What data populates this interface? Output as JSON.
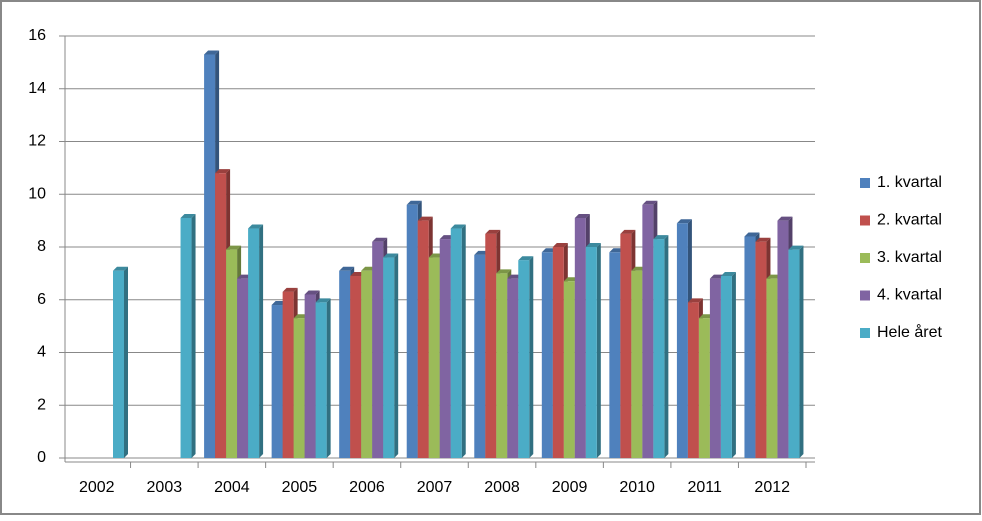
{
  "chart_data": {
    "type": "bar",
    "categories": [
      "2002",
      "2003",
      "2004",
      "2005",
      "2006",
      "2007",
      "2008",
      "2009",
      "2010",
      "2011",
      "2012"
    ],
    "series": [
      {
        "name": "1. kvartal",
        "color": "#4f81bd",
        "values": [
          null,
          null,
          15.3,
          5.8,
          7.1,
          9.6,
          7.7,
          7.8,
          7.8,
          8.9,
          8.4
        ]
      },
      {
        "name": "2. kvartal",
        "color": "#c0504d",
        "values": [
          null,
          null,
          10.8,
          6.3,
          6.9,
          9.0,
          8.5,
          8.0,
          8.5,
          5.9,
          8.2
        ]
      },
      {
        "name": "3. kvartal",
        "color": "#9bbb59",
        "values": [
          null,
          null,
          7.9,
          5.3,
          7.1,
          7.6,
          7.0,
          6.7,
          7.1,
          5.3,
          6.8
        ]
      },
      {
        "name": "4. kvartal",
        "color": "#8064a2",
        "values": [
          null,
          null,
          6.8,
          6.2,
          8.2,
          8.3,
          6.8,
          9.1,
          9.6,
          6.8,
          9.0
        ]
      },
      {
        "name": "Hele året",
        "color": "#4bacc6",
        "values": [
          7.1,
          9.1,
          8.7,
          5.9,
          7.6,
          8.7,
          7.5,
          8.0,
          8.3,
          6.9,
          7.9
        ]
      }
    ],
    "ylim": [
      0,
      16
    ],
    "yticks": [
      0,
      2,
      4,
      6,
      8,
      10,
      12,
      14,
      16
    ],
    "grid": true,
    "legend": "right"
  }
}
